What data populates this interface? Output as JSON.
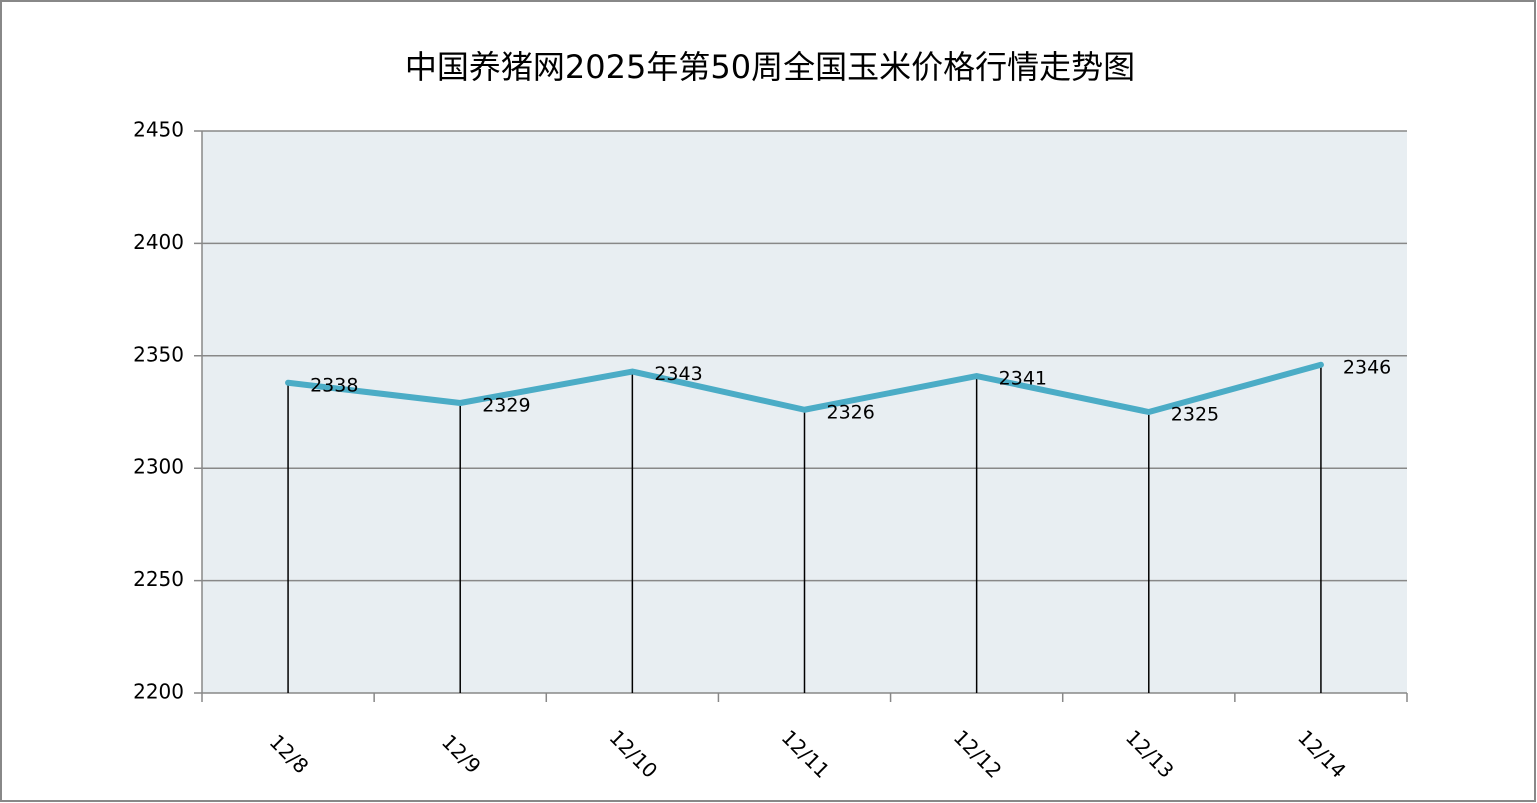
{
  "chart_data": {
    "type": "line",
    "title": "中国养猪网2025年第50周全国玉米价格行情走势图",
    "categories": [
      "12/8",
      "12/9",
      "12/10",
      "12/11",
      "12/12",
      "12/13",
      "12/14"
    ],
    "values": [
      2338,
      2329,
      2343,
      2326,
      2341,
      2325,
      2346
    ],
    "color": "#4bacc6",
    "ylim": [
      2200,
      2450
    ],
    "yticks": [
      2200,
      2250,
      2300,
      2350,
      2400,
      2450
    ],
    "grid": true,
    "drop_lines": true
  }
}
